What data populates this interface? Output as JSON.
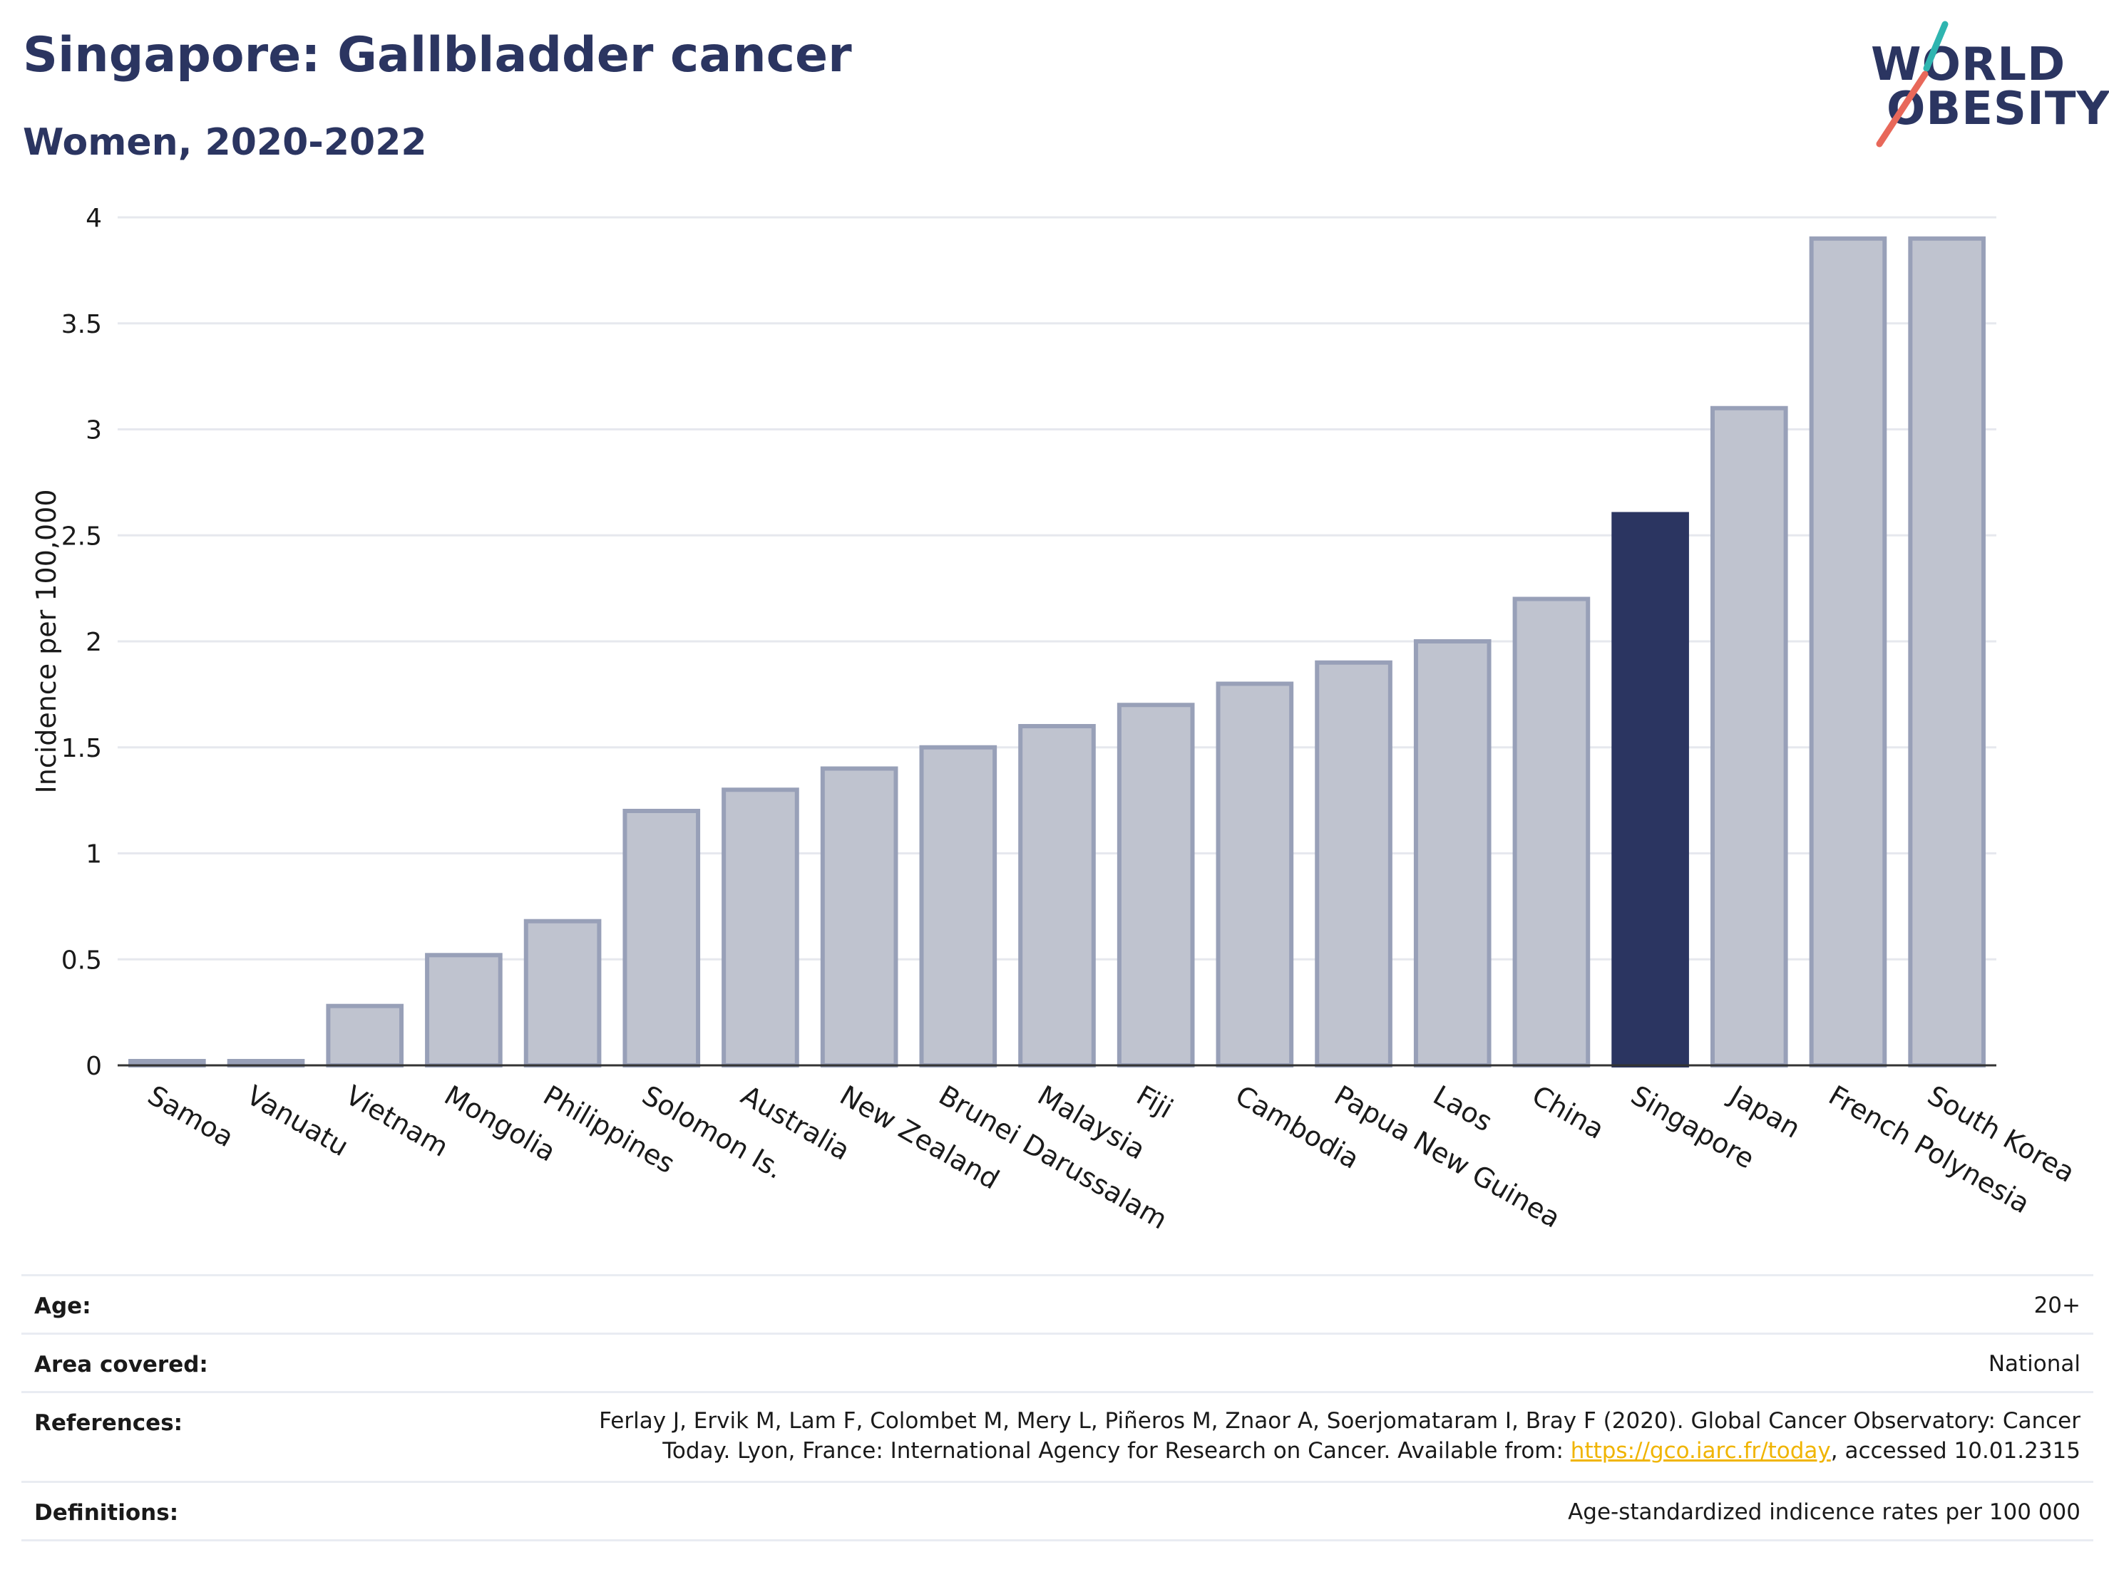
{
  "header": {
    "title": "Singapore: Gallbladder cancer",
    "subtitle": "Women, 2020-2022"
  },
  "logo": {
    "line1": "WORLD",
    "line2": "OBESITY",
    "accent_colors": [
      "#2fb5b0",
      "#e8685a"
    ]
  },
  "colors": {
    "highlight": "#2b3561",
    "bar": "#bfc3cf",
    "bar_edge": "#98a0b8",
    "grid": "#e6e8ee"
  },
  "chart_data": {
    "type": "bar",
    "ylabel": "Incidence per 100,000",
    "xlabel": "",
    "ylim": [
      0,
      4
    ],
    "yticks": [
      0,
      0.5,
      1,
      1.5,
      2,
      2.5,
      3,
      3.5,
      4
    ],
    "ytick_labels": [
      "0",
      "0.5",
      "1",
      "1.5",
      "2",
      "2.5",
      "3",
      "3.5",
      "4"
    ],
    "grid": true,
    "highlight": "Singapore",
    "categories": [
      "Samoa",
      "Vanuatu",
      "Vietnam",
      "Mongolia",
      "Philippines",
      "Solomon Is.",
      "Australia",
      "New Zealand",
      "Brunei Darussalam",
      "Malaysia",
      "Fiji",
      "Cambodia",
      "Papua New Guinea",
      "Laos",
      "China",
      "Singapore",
      "Japan",
      "French Polynesia",
      "South Korea"
    ],
    "values": [
      0,
      0,
      0.28,
      0.52,
      0.68,
      1.2,
      1.3,
      1.4,
      1.5,
      1.6,
      1.7,
      1.8,
      1.9,
      2.0,
      2.2,
      2.6,
      3.1,
      3.9,
      3.9
    ]
  },
  "info": {
    "age_label": "Age:",
    "age_value": "20+",
    "area_label": "Area covered:",
    "area_value": "National",
    "references_label": "References:",
    "references_line1": "Ferlay J, Ervik M, Lam F, Colombet M, Mery L, Piñeros M, Znaor A, Soerjomataram I, Bray F (2020). Global Cancer Observatory: Cancer",
    "references_line2_pre": "Today. Lyon, France: International Agency for Research on Cancer. Available from: ",
    "references_link": "https://gco.iarc.fr/today",
    "references_line2_post": ", accessed 10.01.2315",
    "definitions_label": "Definitions:",
    "definitions_value": "Age-standardized indicence rates per 100 000"
  }
}
